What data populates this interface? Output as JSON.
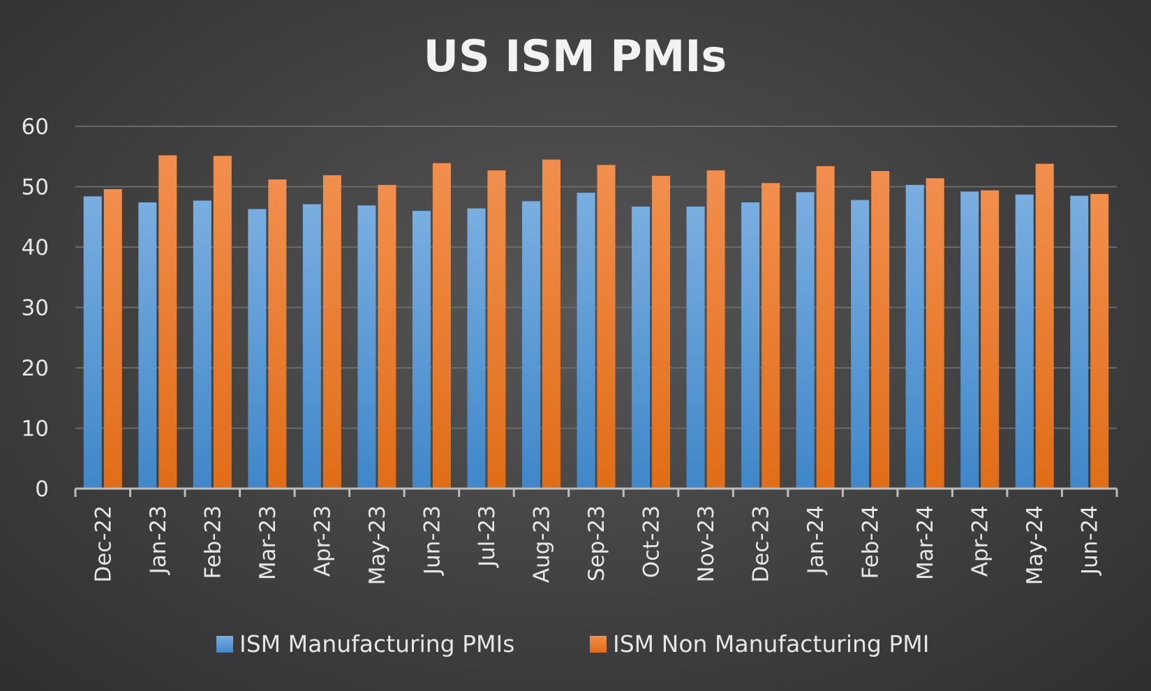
{
  "chart_data": {
    "type": "bar",
    "title": "US ISM PMIs",
    "xlabel": "",
    "ylabel": "",
    "ylim": [
      0,
      60
    ],
    "yticks": [
      0,
      10,
      20,
      30,
      40,
      50,
      60
    ],
    "grid": true,
    "legend_position": "bottom",
    "categories": [
      "Dec-22",
      "Jan-23",
      "Feb-23",
      "Mar-23",
      "Apr-23",
      "May-23",
      "Jun-23",
      "Jul-23",
      "Aug-23",
      "Sep-23",
      "Oct-23",
      "Nov-23",
      "Dec-23",
      "Jan-24",
      "Feb-24",
      "Mar-24",
      "Apr-24",
      "May-24",
      "Jun-24"
    ],
    "series": [
      {
        "name": "ISM Manufacturing PMIs",
        "color": "#5b9bd5",
        "values": [
          48.4,
          47.4,
          47.7,
          46.3,
          47.1,
          46.9,
          46.0,
          46.4,
          47.6,
          49.0,
          46.7,
          46.7,
          47.4,
          49.1,
          47.8,
          50.3,
          49.2,
          48.7,
          48.5
        ]
      },
      {
        "name": "ISM Non Manufacturing PMI",
        "color": "#ed7d31",
        "values": [
          49.6,
          55.2,
          55.1,
          51.2,
          51.9,
          50.3,
          53.9,
          52.7,
          54.5,
          53.6,
          51.8,
          52.7,
          50.6,
          53.4,
          52.6,
          51.4,
          49.4,
          53.8,
          48.8
        ]
      }
    ]
  }
}
